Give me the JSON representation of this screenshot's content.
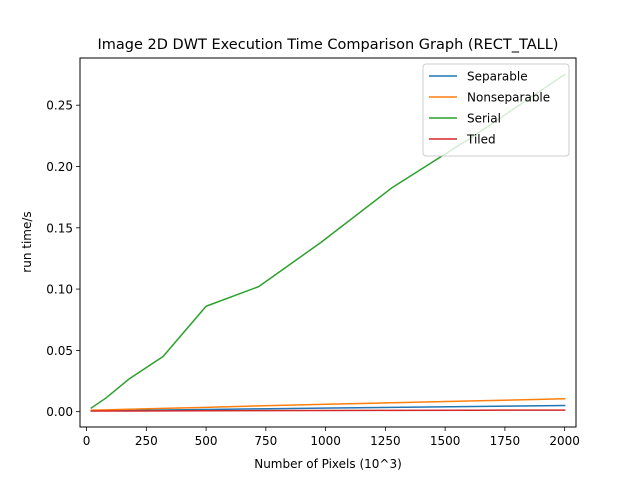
{
  "chart_data": {
    "type": "line",
    "title": "Image 2D DWT Execution Time Comparison Graph (RECT_TALL)",
    "xlabel": "Number of Pixels (10^3)",
    "ylabel": "run time/s",
    "xlim": [
      -27.5,
      2047.5
    ],
    "ylim": [
      -0.0125,
      0.2885
    ],
    "xticks": [
      0,
      250,
      500,
      750,
      1000,
      1250,
      1500,
      1750,
      2000
    ],
    "yticks": [
      0.0,
      0.05,
      0.1,
      0.15,
      0.2,
      0.25
    ],
    "xtick_labels": [
      "0",
      "250",
      "500",
      "750",
      "1000",
      "1250",
      "1500",
      "1750",
      "2000"
    ],
    "ytick_labels": [
      "0.00",
      "0.05",
      "0.10",
      "0.15",
      "0.20",
      "0.25"
    ],
    "grid": false,
    "legend_position": "top-right",
    "series": [
      {
        "name": "Separable",
        "color": "#1f77b4",
        "x": [
          20,
          80,
          180,
          320,
          500,
          720,
          980,
          1280,
          1620,
          2000
        ],
        "y": [
          0.0008,
          0.0009,
          0.0011,
          0.0014,
          0.0018,
          0.0023,
          0.0029,
          0.0035,
          0.0042,
          0.005
        ]
      },
      {
        "name": "Nonseparable",
        "color": "#ff7f0e",
        "x": [
          20,
          80,
          180,
          320,
          500,
          720,
          980,
          1280,
          1620,
          2000
        ],
        "y": [
          0.0012,
          0.0015,
          0.002,
          0.0027,
          0.0035,
          0.0047,
          0.006,
          0.0073,
          0.0088,
          0.0105
        ]
      },
      {
        "name": "Serial",
        "color": "#2ca02c",
        "x": [
          20,
          80,
          180,
          320,
          500,
          720,
          980,
          1280,
          1620,
          2000
        ],
        "y": [
          0.003,
          0.011,
          0.027,
          0.045,
          0.086,
          0.102,
          0.138,
          0.183,
          0.225,
          0.275
        ]
      },
      {
        "name": "Tiled",
        "color": "#d62728",
        "x": [
          20,
          80,
          180,
          320,
          500,
          720,
          980,
          1280,
          1620,
          2000
        ],
        "y": [
          0.0005,
          0.0005,
          0.0006,
          0.0007,
          0.0008,
          0.0009,
          0.001,
          0.0011,
          0.0012,
          0.0013
        ]
      }
    ]
  }
}
